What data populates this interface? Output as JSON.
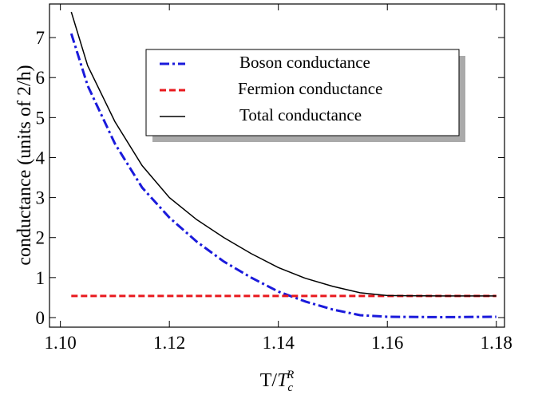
{
  "chart_data": {
    "type": "line",
    "xlabel": {
      "base": "T/",
      "italic": "T",
      "sub": "c",
      "sup": "R"
    },
    "ylabel": "conductance (units of 2/h)",
    "x": [
      1.102,
      1.105,
      1.11,
      1.115,
      1.12,
      1.125,
      1.13,
      1.135,
      1.14,
      1.145,
      1.15,
      1.155,
      1.16,
      1.17,
      1.18
    ],
    "series": [
      {
        "name": "Boson conductance",
        "color": "#1a1adb",
        "dash": "12 4 3 4",
        "values": [
          7.1,
          5.8,
          4.35,
          3.25,
          2.5,
          1.9,
          1.4,
          1.0,
          0.65,
          0.4,
          0.2,
          0.06,
          0.02,
          0.01,
          0.02
        ]
      },
      {
        "name": "Fermion conductance",
        "color": "#e8191e",
        "dash": "8 4",
        "values": [
          0.54,
          0.54,
          0.54,
          0.54,
          0.54,
          0.54,
          0.54,
          0.54,
          0.54,
          0.54,
          0.54,
          0.54,
          0.54,
          0.54,
          0.54
        ]
      },
      {
        "name": "Total conductance",
        "color": "#000000",
        "dash": "none",
        "values": [
          7.64,
          6.3,
          4.9,
          3.8,
          3.0,
          2.45,
          2.0,
          1.6,
          1.25,
          0.98,
          0.78,
          0.62,
          0.55,
          0.54,
          0.54
        ]
      }
    ],
    "xlim": [
      1.098,
      1.1815
    ],
    "ylim": [
      -0.24,
      7.84
    ],
    "xticks": [
      {
        "value": 1.1,
        "label": "1.10"
      },
      {
        "value": 1.12,
        "label": "1.12"
      },
      {
        "value": 1.14,
        "label": "1.14"
      },
      {
        "value": 1.16,
        "label": "1.16"
      },
      {
        "value": 1.18,
        "label": "1.18"
      }
    ],
    "yticks": [
      0,
      1,
      2,
      3,
      4,
      5,
      6,
      7
    ]
  }
}
